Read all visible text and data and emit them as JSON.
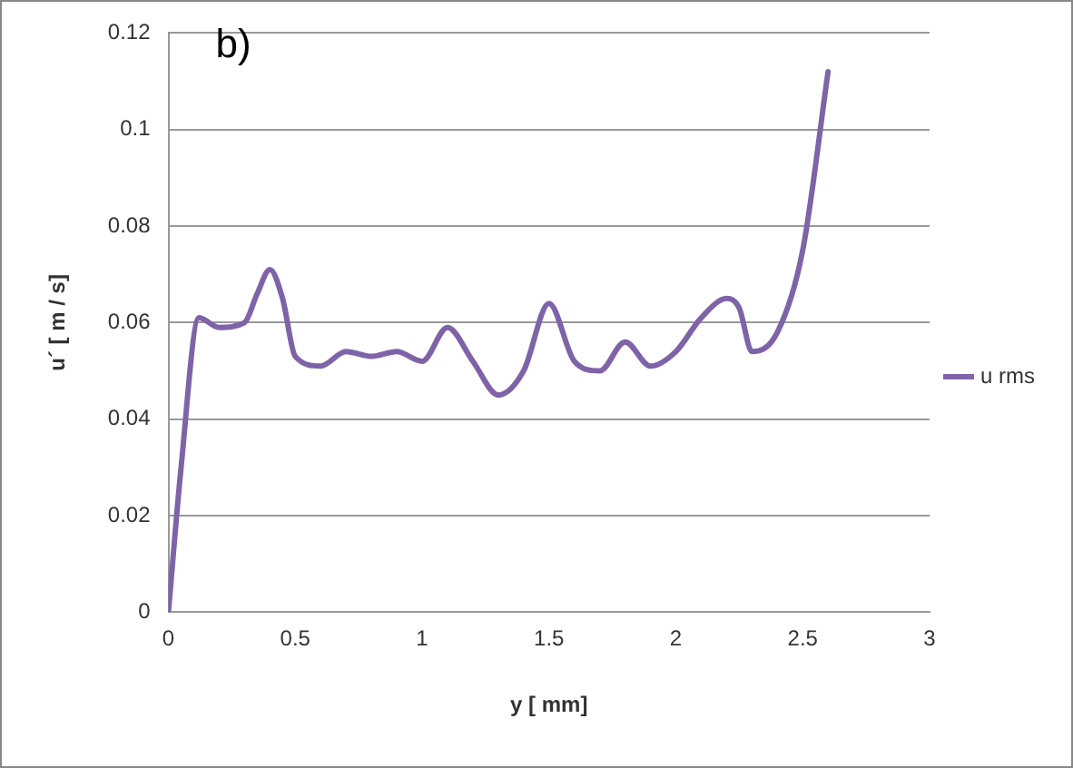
{
  "chart_data": {
    "type": "line",
    "title": "b)",
    "xlabel": "y [ mm]",
    "ylabel": "u´ [ m / s]",
    "x": [
      0,
      0.05,
      0.12,
      0.2,
      0.3,
      0.35,
      0.4,
      0.45,
      0.5,
      0.6,
      0.7,
      0.8,
      0.9,
      1.0,
      1.1,
      1.2,
      1.3,
      1.4,
      1.5,
      1.6,
      1.7,
      1.8,
      1.9,
      2.0,
      2.1,
      2.2,
      2.25,
      2.3,
      2.4,
      2.5,
      2.6
    ],
    "series": [
      {
        "name": "u rms",
        "color": "#7f63a8",
        "values": [
          0,
          0.03,
          0.061,
          0.059,
          0.06,
          0.066,
          0.071,
          0.065,
          0.053,
          0.051,
          0.054,
          0.053,
          0.054,
          0.052,
          0.059,
          0.052,
          0.045,
          0.05,
          0.064,
          0.052,
          0.05,
          0.056,
          0.051,
          0.054,
          0.061,
          0.065,
          0.063,
          0.054,
          0.058,
          0.075,
          0.112
        ]
      }
    ],
    "xlim": [
      0,
      3
    ],
    "xticks": [
      0,
      0.5,
      1,
      1.5,
      2,
      2.5,
      3
    ],
    "ylim": [
      0,
      0.12
    ],
    "yticks": [
      0,
      0.02,
      0.04,
      0.06,
      0.08,
      0.1,
      0.12
    ],
    "grid": "y",
    "legend": "right",
    "marker": "none",
    "line_style": "solid"
  }
}
